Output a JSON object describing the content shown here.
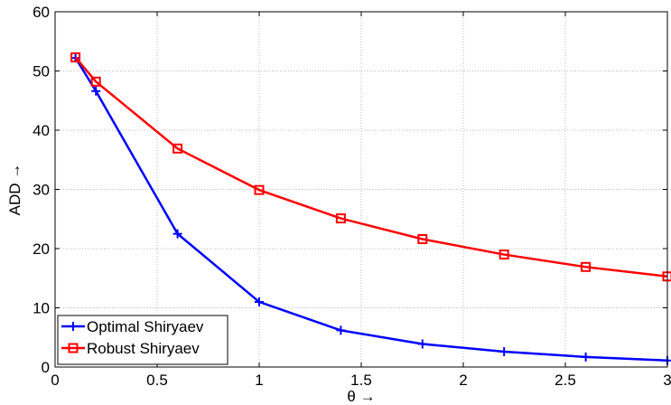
{
  "chart_data": {
    "type": "line",
    "title": "",
    "xlabel": "θ →",
    "ylabel": "ADD →",
    "xlim": [
      0,
      3
    ],
    "ylim": [
      0,
      60
    ],
    "xticks": [
      0,
      0.5,
      1,
      1.5,
      2,
      2.5,
      3
    ],
    "xtick_labels": [
      "0",
      "0.5",
      "1",
      "1.5",
      "2",
      "2.5",
      "3"
    ],
    "yticks": [
      0,
      10,
      20,
      30,
      40,
      50,
      60
    ],
    "ytick_labels": [
      "0",
      "10",
      "20",
      "30",
      "40",
      "50",
      "60"
    ],
    "grid": true,
    "legend_position": "bottom-left",
    "series": [
      {
        "name": "Optimal Shiryaev",
        "color": "#0000ff",
        "marker": "plus",
        "x": [
          0.1,
          0.2,
          0.6,
          1.0,
          1.4,
          1.8,
          2.2,
          2.6,
          3.0
        ],
        "y": [
          52.2,
          46.6,
          22.5,
          11.0,
          6.2,
          3.9,
          2.6,
          1.7,
          1.1
        ]
      },
      {
        "name": "Robust Shiryaev",
        "color": "#ff0000",
        "marker": "square",
        "x": [
          0.1,
          0.2,
          0.6,
          1.0,
          1.4,
          1.8,
          2.2,
          2.6,
          3.0
        ],
        "y": [
          52.3,
          48.2,
          36.9,
          29.9,
          25.1,
          21.6,
          19.0,
          16.9,
          15.3
        ]
      }
    ]
  }
}
